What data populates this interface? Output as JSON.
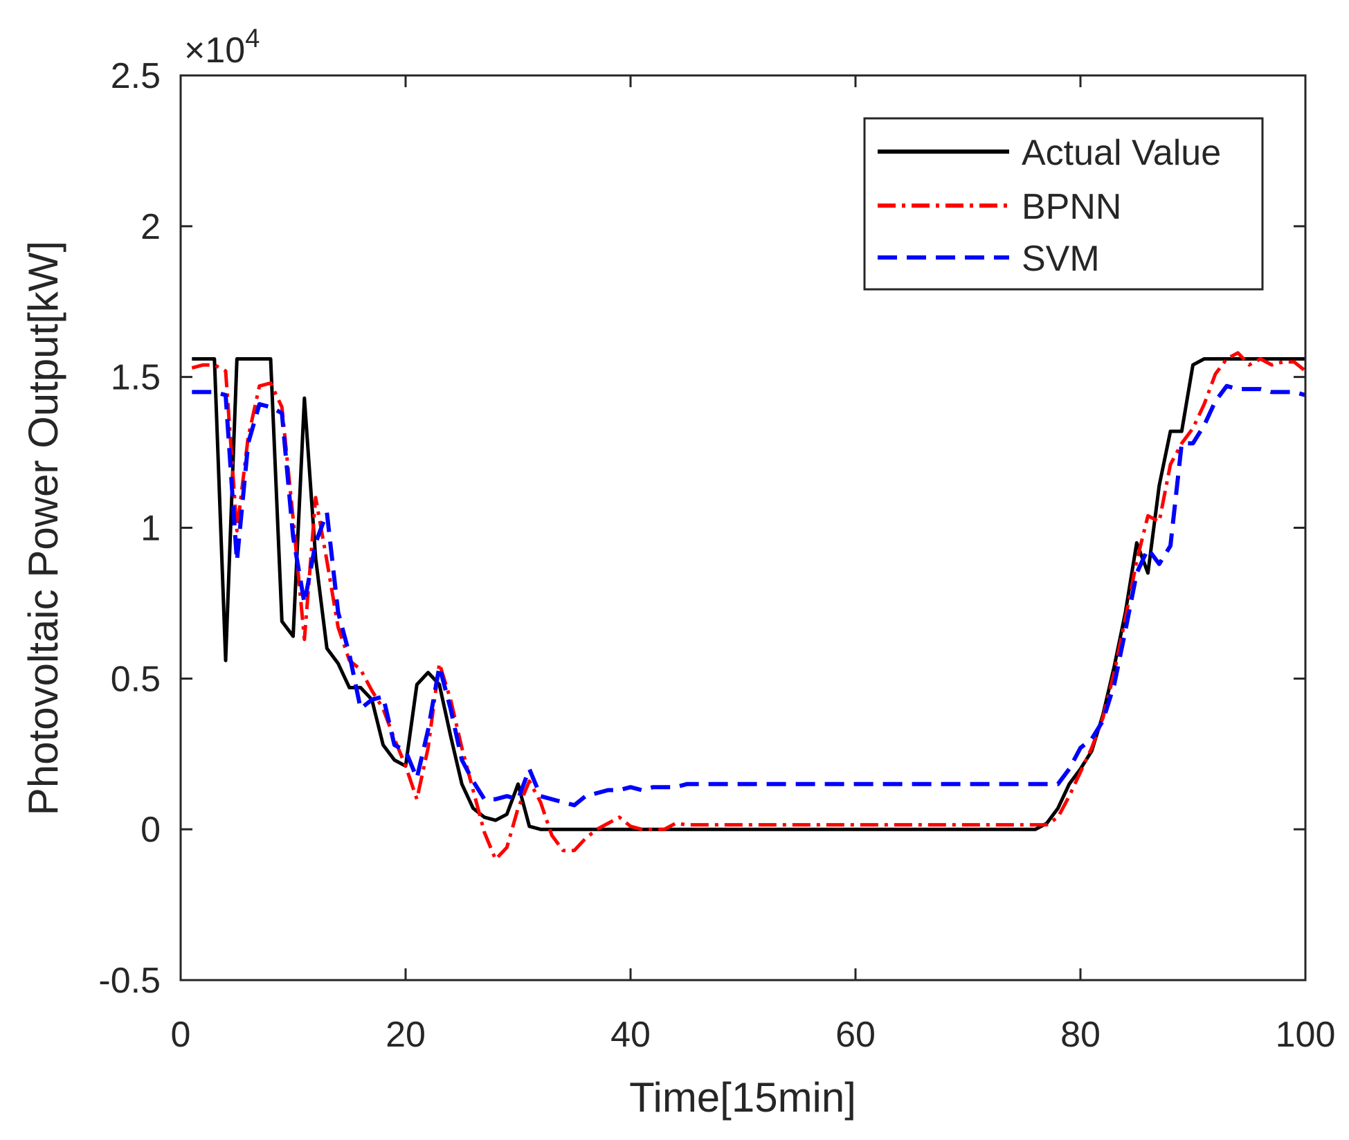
{
  "chart_data": {
    "type": "line",
    "title": "",
    "xlabel": "Time[15min]",
    "ylabel": "Photovoltaic Power Output[kW]",
    "xlim": [
      0,
      100
    ],
    "ylim": [
      -0.5,
      2.5
    ],
    "y_multiplier_label": "×10",
    "y_multiplier_exponent": "4",
    "xticks": [
      0,
      20,
      40,
      60,
      80,
      100
    ],
    "xtick_labels": [
      "0",
      "20",
      "40",
      "60",
      "80",
      "100"
    ],
    "yticks": [
      -0.5,
      0,
      0.5,
      1,
      1.5,
      2,
      2.5
    ],
    "ytick_labels": [
      "-0.5",
      "0",
      "0.5",
      "1",
      "1.5",
      "2",
      "2.5"
    ],
    "grid": false,
    "legend_position": "top-right",
    "series": [
      {
        "name": "Actual Value",
        "color": "#000000",
        "style": "solid",
        "x": [
          1,
          2,
          3,
          4,
          5,
          6,
          7,
          8,
          9,
          10,
          11,
          12,
          13,
          14,
          15,
          16,
          17,
          18,
          19,
          20,
          21,
          22,
          23,
          24,
          25,
          26,
          27,
          28,
          29,
          30,
          31,
          32,
          33,
          34,
          35,
          36,
          37,
          38,
          39,
          40,
          41,
          42,
          43,
          44,
          45,
          46,
          47,
          48,
          49,
          50,
          51,
          52,
          53,
          54,
          55,
          56,
          57,
          58,
          59,
          60,
          61,
          62,
          63,
          64,
          65,
          66,
          67,
          68,
          69,
          70,
          71,
          72,
          73,
          74,
          75,
          76,
          77,
          78,
          79,
          80,
          81,
          82,
          83,
          84,
          85,
          86,
          87,
          88,
          89,
          90,
          91,
          92,
          93,
          94,
          95,
          96,
          97,
          98,
          99,
          100
        ],
        "values": [
          1.56,
          1.56,
          1.56,
          0.56,
          1.56,
          1.56,
          1.56,
          1.56,
          0.69,
          0.64,
          1.43,
          0.9,
          0.6,
          0.55,
          0.47,
          0.47,
          0.43,
          0.28,
          0.23,
          0.21,
          0.48,
          0.52,
          0.48,
          0.31,
          0.15,
          0.07,
          0.04,
          0.03,
          0.05,
          0.15,
          0.01,
          0,
          0,
          0,
          0,
          0,
          0,
          0,
          0,
          0,
          0,
          0,
          0,
          0,
          0,
          0,
          0,
          0,
          0,
          0,
          0,
          0,
          0,
          0,
          0,
          0,
          0,
          0,
          0,
          0,
          0,
          0,
          0,
          0,
          0,
          0,
          0,
          0,
          0,
          0,
          0,
          0,
          0,
          0,
          0,
          0,
          0.02,
          0.07,
          0.15,
          0.2,
          0.26,
          0.38,
          0.54,
          0.72,
          0.95,
          0.85,
          1.14,
          1.32,
          1.32,
          1.54,
          1.56,
          1.56,
          1.56,
          1.56,
          1.56,
          1.56,
          1.56,
          1.56,
          1.56,
          1.56
        ]
      },
      {
        "name": "BPNN",
        "color": "#ff0000",
        "style": "dashdot",
        "x": [
          1,
          2,
          3,
          4,
          5,
          6,
          7,
          8,
          9,
          10,
          11,
          12,
          13,
          14,
          15,
          16,
          17,
          18,
          19,
          20,
          21,
          22,
          23,
          24,
          25,
          26,
          27,
          28,
          29,
          30,
          31,
          32,
          33,
          34,
          35,
          36,
          37,
          38,
          39,
          40,
          41,
          42,
          43,
          44,
          45,
          46,
          47,
          48,
          49,
          50,
          51,
          52,
          53,
          54,
          55,
          56,
          57,
          58,
          59,
          60,
          61,
          62,
          63,
          64,
          65,
          66,
          67,
          68,
          69,
          70,
          71,
          72,
          73,
          74,
          75,
          76,
          77,
          78,
          79,
          80,
          81,
          82,
          83,
          84,
          85,
          86,
          87,
          88,
          89,
          90,
          91,
          92,
          93,
          94,
          95,
          96,
          97,
          98,
          99,
          100
        ],
        "values": [
          1.53,
          1.54,
          1.54,
          1.52,
          0.99,
          1.3,
          1.47,
          1.48,
          1.4,
          1.03,
          0.63,
          1.1,
          0.89,
          0.67,
          0.56,
          0.53,
          0.46,
          0.4,
          0.3,
          0.21,
          0.1,
          0.27,
          0.55,
          0.43,
          0.27,
          0.13,
          -0.01,
          -0.1,
          -0.06,
          0.07,
          0.16,
          0.09,
          -0.02,
          -0.07,
          -0.07,
          -0.03,
          0,
          0.02,
          0.04,
          0.01,
          0,
          0,
          0,
          0.02,
          0.015,
          0.015,
          0.015,
          0.015,
          0.015,
          0.015,
          0.015,
          0.015,
          0.015,
          0.015,
          0.015,
          0.015,
          0.015,
          0.015,
          0.015,
          0.015,
          0.015,
          0.015,
          0.015,
          0.015,
          0.015,
          0.015,
          0.015,
          0.015,
          0.015,
          0.015,
          0.015,
          0.015,
          0.015,
          0.015,
          0.015,
          0.015,
          0.015,
          0.04,
          0.11,
          0.19,
          0.27,
          0.37,
          0.52,
          0.7,
          0.89,
          1.04,
          1.02,
          1.21,
          1.28,
          1.33,
          1.41,
          1.51,
          1.56,
          1.58,
          1.54,
          1.56,
          1.54,
          1.55,
          1.55,
          1.52
        ]
      },
      {
        "name": "SVM",
        "color": "#0000ff",
        "style": "dashed",
        "x": [
          1,
          2,
          3,
          4,
          5,
          6,
          7,
          8,
          9,
          10,
          11,
          12,
          13,
          14,
          15,
          16,
          17,
          18,
          19,
          20,
          21,
          22,
          23,
          24,
          25,
          26,
          27,
          28,
          29,
          30,
          31,
          32,
          33,
          34,
          35,
          36,
          37,
          38,
          39,
          40,
          41,
          42,
          43,
          44,
          45,
          46,
          47,
          48,
          49,
          50,
          51,
          52,
          53,
          54,
          55,
          56,
          57,
          58,
          59,
          60,
          61,
          62,
          63,
          64,
          65,
          66,
          67,
          68,
          69,
          70,
          71,
          72,
          73,
          74,
          75,
          76,
          77,
          78,
          79,
          80,
          81,
          82,
          83,
          84,
          85,
          86,
          87,
          88,
          89,
          90,
          91,
          92,
          93,
          94,
          95,
          96,
          97,
          98,
          99,
          100
        ],
        "values": [
          1.45,
          1.45,
          1.45,
          1.44,
          0.89,
          1.28,
          1.41,
          1.4,
          1.38,
          0.97,
          0.75,
          0.95,
          1.05,
          0.72,
          0.58,
          0.4,
          0.43,
          0.44,
          0.28,
          0.26,
          0.17,
          0.33,
          0.54,
          0.4,
          0.23,
          0.16,
          0.1,
          0.1,
          0.11,
          0.1,
          0.2,
          0.11,
          0.1,
          0.09,
          0.08,
          0.11,
          0.12,
          0.13,
          0.13,
          0.14,
          0.13,
          0.14,
          0.14,
          0.14,
          0.15,
          0.15,
          0.15,
          0.15,
          0.15,
          0.15,
          0.15,
          0.15,
          0.15,
          0.15,
          0.15,
          0.15,
          0.15,
          0.15,
          0.15,
          0.15,
          0.15,
          0.15,
          0.15,
          0.15,
          0.15,
          0.15,
          0.15,
          0.15,
          0.15,
          0.15,
          0.15,
          0.15,
          0.15,
          0.15,
          0.15,
          0.15,
          0.15,
          0.15,
          0.2,
          0.27,
          0.3,
          0.36,
          0.48,
          0.66,
          0.85,
          0.93,
          0.88,
          0.94,
          1.28,
          1.28,
          1.34,
          1.42,
          1.47,
          1.46,
          1.46,
          1.46,
          1.45,
          1.45,
          1.45,
          1.44
        ]
      }
    ]
  }
}
